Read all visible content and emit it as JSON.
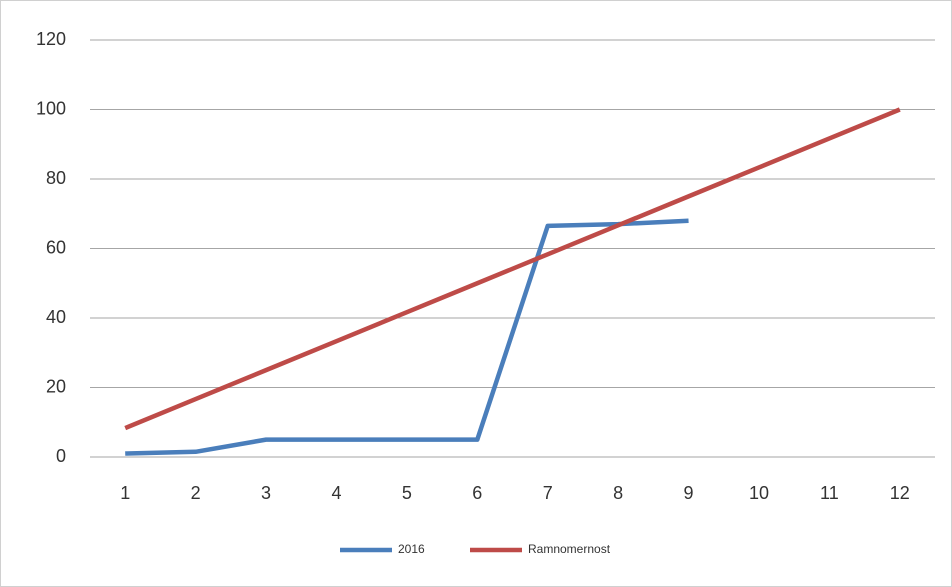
{
  "chart_data": {
    "type": "line",
    "categories": [
      "1",
      "2",
      "3",
      "4",
      "5",
      "6",
      "7",
      "8",
      "9",
      "10",
      "11",
      "12"
    ],
    "series": [
      {
        "name": "2016",
        "color": "#4a7ebb",
        "values": [
          1,
          1.5,
          5,
          5,
          5,
          5,
          66.5,
          67,
          68,
          null,
          null,
          null
        ]
      },
      {
        "name": "Ramnomernost",
        "color": "#be4b48",
        "values": [
          8.33,
          16.67,
          25,
          33.33,
          41.67,
          50,
          58.33,
          66.67,
          75,
          83.33,
          91.67,
          100
        ]
      }
    ],
    "ylim": [
      0,
      120
    ],
    "yticks": [
      0,
      20,
      40,
      60,
      80,
      100,
      120
    ],
    "grid": true,
    "legend": "bottom"
  }
}
